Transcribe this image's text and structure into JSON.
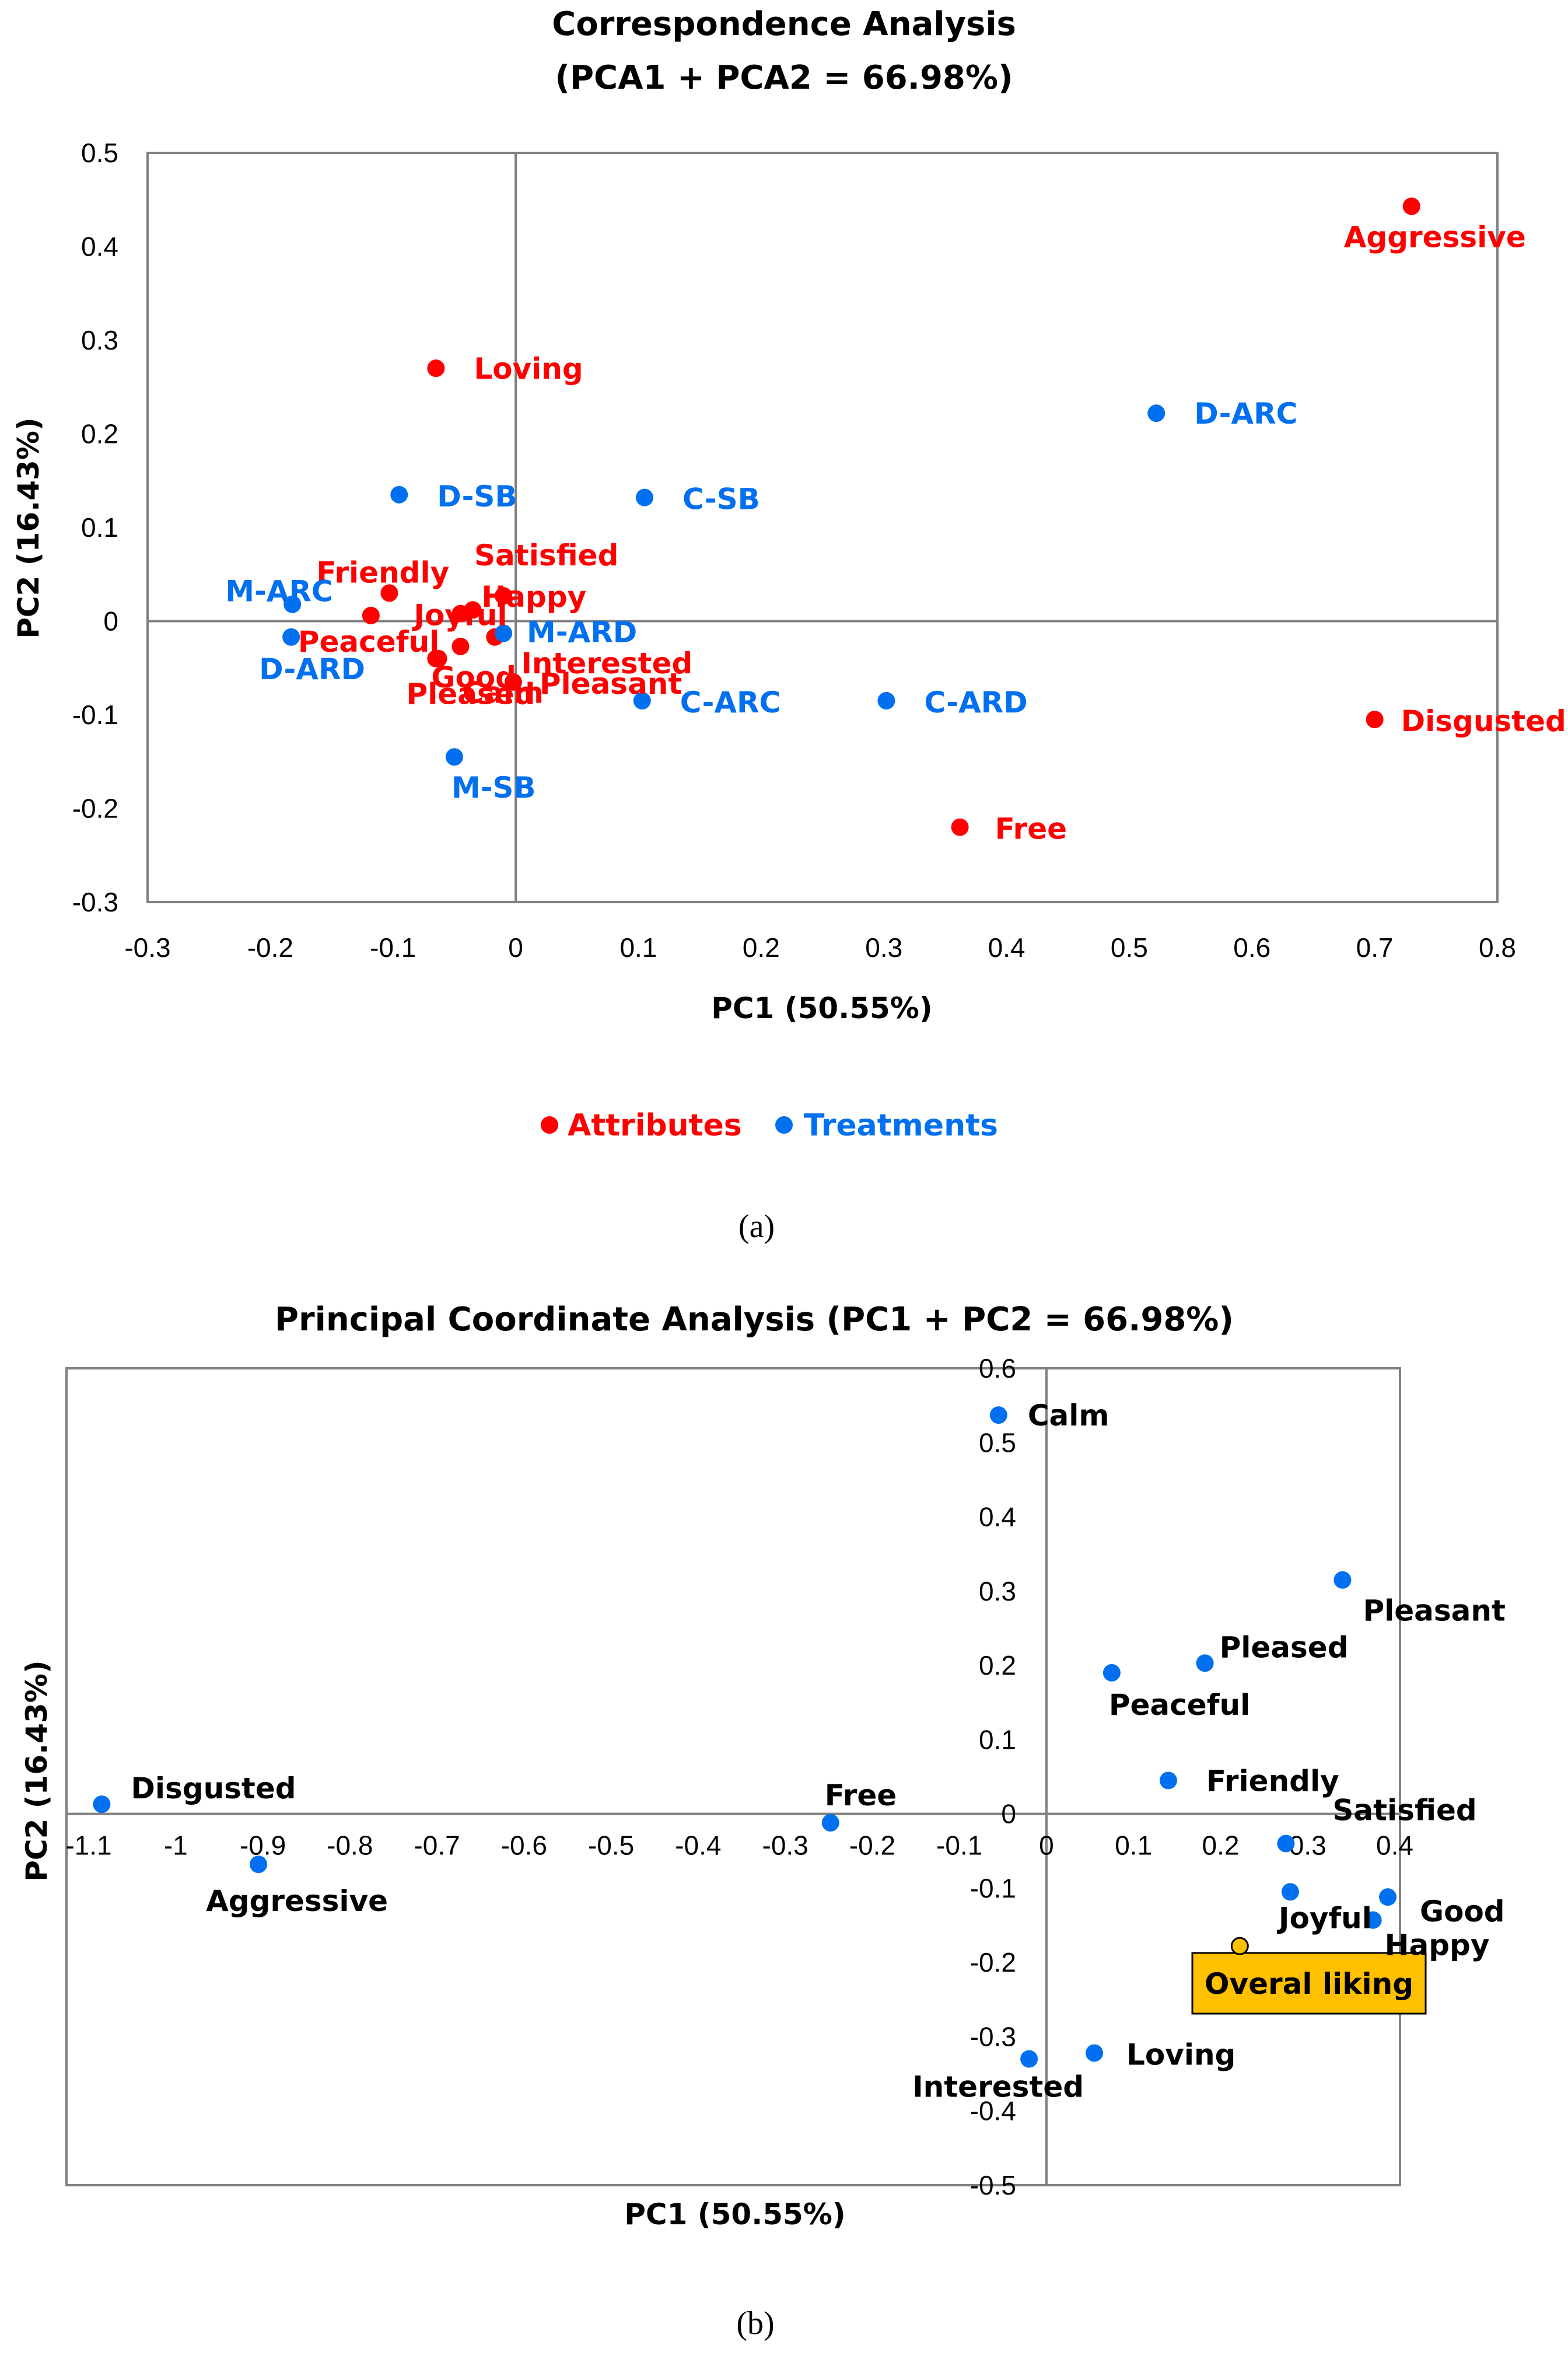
{
  "colors": {
    "attribute": "#ff0000",
    "treatment": "#0070f0",
    "highlight_fill": "#ffc000",
    "highlight_border": "#000000"
  },
  "chart_data": [
    {
      "type": "scatter",
      "title": "Correspondence Analysis",
      "subtitle": "(PCA1 + PCA2 = 66.98%)",
      "xlabel": "PC1 (50.55%)",
      "ylabel": "PC2 (16.43%)",
      "xlim": [
        -0.3,
        0.8
      ],
      "ylim": [
        -0.3,
        0.5
      ],
      "xticks": [
        "-0.3",
        "-0.2",
        "-0.1",
        "0",
        "0.1",
        "0.2",
        "0.3",
        "0.4",
        "0.5",
        "0.6",
        "0.7",
        "0.8"
      ],
      "yticks": [
        "0.5",
        "0.4",
        "0.3",
        "0.2",
        "0.1",
        "0",
        "-0.1",
        "-0.2",
        "-0.3"
      ],
      "legend": [
        {
          "name": "Attributes",
          "color": "#ff0000"
        },
        {
          "name": "Treatments",
          "color": "#0070f0"
        }
      ],
      "legend_position": "bottom",
      "caption": "(a)",
      "series": [
        {
          "name": "Attributes",
          "points": [
            {
              "label": "Aggressive",
              "x": 0.73,
              "y": 0.443
            },
            {
              "label": "Loving",
              "x": -0.065,
              "y": 0.27
            },
            {
              "label": "Friendly",
              "x": -0.103,
              "y": 0.03
            },
            {
              "label": "Satisfied",
              "x": -0.01,
              "y": 0.027
            },
            {
              "label": "Happy",
              "x": -0.035,
              "y": 0.012
            },
            {
              "label": "Joyful",
              "x": -0.045,
              "y": 0.008
            },
            {
              "label": "Peaceful",
              "x": -0.118,
              "y": 0.006
            },
            {
              "label": "Good",
              "x": -0.045,
              "y": -0.027
            },
            {
              "label": "Interested",
              "x": -0.017,
              "y": -0.017
            },
            {
              "label": "Pleasant",
              "x": -0.002,
              "y": -0.065
            },
            {
              "label": "Pleased",
              "x": -0.063,
              "y": -0.04
            },
            {
              "label": "Calm",
              "x": -0.065,
              "y": -0.04
            },
            {
              "label": "Disgusted",
              "x": 0.7,
              "y": -0.105
            },
            {
              "label": "Free",
              "x": 0.362,
              "y": -0.22
            }
          ]
        },
        {
          "name": "Treatments",
          "points": [
            {
              "label": "D-ARC",
              "x": 0.522,
              "y": 0.222
            },
            {
              "label": "D-SB",
              "x": -0.095,
              "y": 0.135
            },
            {
              "label": "C-SB",
              "x": 0.105,
              "y": 0.132
            },
            {
              "label": "M-ARC",
              "x": -0.182,
              "y": 0.018
            },
            {
              "label": "M-ARD",
              "x": -0.01,
              "y": -0.013
            },
            {
              "label": "D-ARD",
              "x": -0.183,
              "y": -0.017
            },
            {
              "label": "C-ARC",
              "x": 0.103,
              "y": -0.085
            },
            {
              "label": "C-ARD",
              "x": 0.302,
              "y": -0.085
            },
            {
              "label": "M-SB",
              "x": -0.05,
              "y": -0.145
            }
          ]
        }
      ]
    },
    {
      "type": "scatter",
      "title": "Principal Coordinate Analysis (PC1 + PC2 = 66.98%)",
      "xlabel": "PC1 (50.55%)",
      "ylabel": "PC2 (16.43%)",
      "xlim": [
        -1.1,
        0.4
      ],
      "ylim": [
        -0.5,
        0.6
      ],
      "xticks": [
        "-1.1",
        "-1",
        "-0.9",
        "-0.8",
        "-0.7",
        "-0.6",
        "-0.5",
        "-0.4",
        "-0.3",
        "-0.2",
        "-0.1",
        "0",
        "0.1",
        "0.2",
        "0.3",
        "0.4"
      ],
      "yticks": [
        "0.6",
        "0.5",
        "0.4",
        "0.3",
        "0.2",
        "0.1",
        "0",
        "-0.1",
        "-0.2",
        "-0.3",
        "-0.4",
        "-0.5"
      ],
      "caption": "(b)",
      "series": [
        {
          "name": "Attributes",
          "points": [
            {
              "label": "Calm",
              "x": -0.055,
              "y": 0.537
            },
            {
              "label": "Pleasant",
              "x": 0.34,
              "y": 0.315
            },
            {
              "label": "Pleased",
              "x": 0.182,
              "y": 0.203
            },
            {
              "label": "Peaceful",
              "x": 0.075,
              "y": 0.19
            },
            {
              "label": "Friendly",
              "x": 0.14,
              "y": 0.045
            },
            {
              "label": "Satisfied",
              "x": 0.275,
              "y": -0.04
            },
            {
              "label": "Joyful",
              "x": 0.28,
              "y": -0.105
            },
            {
              "label": "Good",
              "x": 0.392,
              "y": -0.112
            },
            {
              "label": "Happy",
              "x": 0.375,
              "y": -0.143
            },
            {
              "label": "Free",
              "x": -0.248,
              "y": -0.012
            },
            {
              "label": "Disgusted",
              "x": -1.085,
              "y": 0.013
            },
            {
              "label": "Aggressive",
              "x": -0.905,
              "y": -0.068
            },
            {
              "label": "Interested",
              "x": -0.02,
              "y": -0.33
            },
            {
              "label": "Loving",
              "x": 0.055,
              "y": -0.322
            }
          ]
        },
        {
          "name": "Overall",
          "points": [
            {
              "label": "Overal liking",
              "x": 0.222,
              "y": -0.178
            }
          ]
        }
      ]
    }
  ]
}
